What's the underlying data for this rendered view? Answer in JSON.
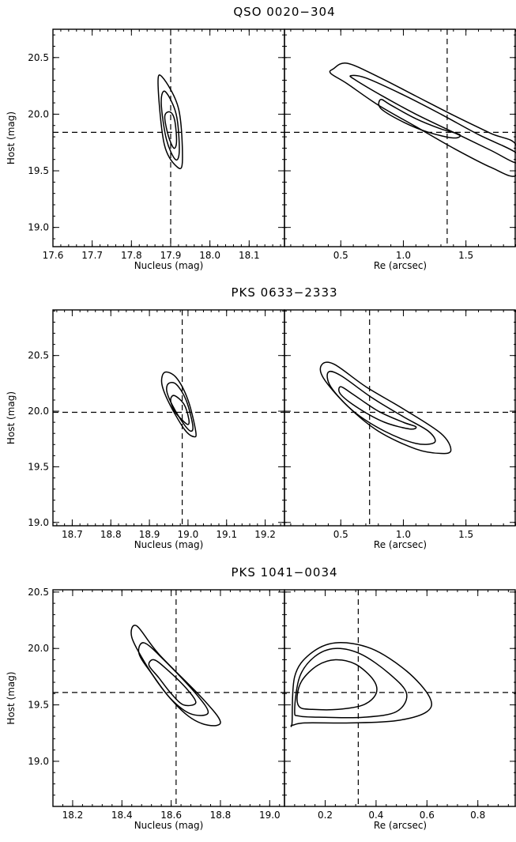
{
  "chart_data": [
    {
      "type": "contour",
      "title": "QSO 0020−304",
      "ylabel": "Host (mag)",
      "ylim": [
        18.83,
        20.75
      ],
      "yticks": [
        "19.0",
        "19.5",
        "20.0",
        "20.5"
      ],
      "yticks_values": [
        19.0,
        19.5,
        20.0,
        20.5
      ],
      "panels": [
        {
          "xlabel": "Nucleus (mag)",
          "xlim": [
            17.6,
            18.19
          ],
          "xticks": [
            "17.6",
            "17.7",
            "17.8",
            "17.9",
            "18.0",
            "18.1"
          ],
          "xticks_values": [
            17.6,
            17.7,
            17.8,
            17.9,
            18.0,
            18.1
          ],
          "best_fit": {
            "x": 17.9,
            "y": 19.84
          },
          "contours": [
            {
              "level": 1,
              "points": [
                [
                  17.898,
                  20.02
                ],
                [
                  17.885,
                  19.98
                ],
                [
                  17.894,
                  19.81
                ],
                [
                  17.908,
                  19.7
                ],
                [
                  17.915,
                  19.76
                ],
                [
                  17.91,
                  19.95
                ]
              ]
            },
            {
              "level": 2,
              "points": [
                [
                  17.886,
                  20.2
                ],
                [
                  17.876,
                  20.1
                ],
                [
                  17.889,
                  19.78
                ],
                [
                  17.912,
                  19.6
                ],
                [
                  17.922,
                  19.68
                ],
                [
                  17.914,
                  20.0
                ]
              ]
            },
            {
              "level": 3,
              "points": [
                [
                  17.878,
                  20.33
                ],
                [
                  17.868,
                  20.25
                ],
                [
                  17.884,
                  19.73
                ],
                [
                  17.918,
                  19.53
                ],
                [
                  17.93,
                  19.6
                ],
                [
                  17.92,
                  20.05
                ]
              ]
            }
          ]
        },
        {
          "xlabel": "Re (arcsec)",
          "xlim": [
            0.05,
            1.9
          ],
          "xticks": [
            "0.5",
            "1.0",
            "1.5"
          ],
          "xticks_values": [
            0.5,
            1.0,
            1.5
          ],
          "best_fit": {
            "x": 1.35,
            "y": 19.84
          },
          "contours": [
            {
              "level": 1,
              "points": [
                [
                  0.82,
                  20.13
                ],
                [
                  0.9,
                  20.08
                ],
                [
                  1.1,
                  19.96
                ],
                [
                  1.3,
                  19.87
                ],
                [
                  1.45,
                  19.82
                ],
                [
                  1.4,
                  19.79
                ],
                [
                  1.2,
                  19.84
                ],
                [
                  1.0,
                  19.93
                ],
                [
                  0.82,
                  20.05
                ]
              ]
            },
            {
              "level": 2,
              "points": [
                [
                  0.58,
                  20.34
                ],
                [
                  0.7,
                  20.32
                ],
                [
                  1.0,
                  20.17
                ],
                [
                  1.3,
                  20.0
                ],
                [
                  1.6,
                  19.82
                ],
                [
                  1.9,
                  19.66
                ],
                [
                  1.9,
                  19.57
                ],
                [
                  1.7,
                  19.68
                ],
                [
                  1.4,
                  19.84
                ],
                [
                  1.1,
                  20.0
                ],
                [
                  0.85,
                  20.15
                ],
                [
                  0.62,
                  20.3
                ]
              ]
            },
            {
              "level": 3,
              "points": [
                [
                  0.44,
                  20.4
                ],
                [
                  0.55,
                  20.45
                ],
                [
                  0.8,
                  20.33
                ],
                [
                  1.1,
                  20.16
                ],
                [
                  1.4,
                  19.99
                ],
                [
                  1.7,
                  19.83
                ],
                [
                  1.9,
                  19.73
                ],
                [
                  1.9,
                  19.46
                ],
                [
                  1.7,
                  19.53
                ],
                [
                  1.4,
                  19.7
                ],
                [
                  1.1,
                  19.89
                ],
                [
                  0.8,
                  20.08
                ],
                [
                  0.55,
                  20.27
                ],
                [
                  0.42,
                  20.36
                ]
              ]
            }
          ]
        }
      ]
    },
    {
      "type": "contour",
      "title": "PKS 0633−2333",
      "ylabel": "Host (mag)",
      "ylim": [
        18.97,
        20.91
      ],
      "yticks": [
        "19.0",
        "19.5",
        "20.0",
        "20.5"
      ],
      "yticks_values": [
        19.0,
        19.5,
        20.0,
        20.5
      ],
      "panels": [
        {
          "xlabel": "Nucleus (mag)",
          "xlim": [
            18.65,
            19.25
          ],
          "xticks": [
            "18.7",
            "18.8",
            "18.9",
            "19.0",
            "19.1",
            "19.2"
          ],
          "xticks_values": [
            18.7,
            18.8,
            18.9,
            19.0,
            19.1,
            19.2
          ],
          "best_fit": {
            "x": 18.985,
            "y": 19.99
          },
          "contours": [
            {
              "level": 1,
              "points": [
                [
                  18.965,
                  20.14
                ],
                [
                  18.955,
                  20.1
                ],
                [
                  18.965,
                  20.0
                ],
                [
                  18.985,
                  19.92
                ],
                [
                  19.0,
                  19.88
                ],
                [
                  19.002,
                  19.93
                ],
                [
                  18.99,
                  20.06
                ]
              ]
            },
            {
              "level": 2,
              "points": [
                [
                  18.95,
                  20.25
                ],
                [
                  18.945,
                  20.18
                ],
                [
                  18.96,
                  20.05
                ],
                [
                  18.99,
                  19.88
                ],
                [
                  19.008,
                  19.82
                ],
                [
                  19.012,
                  19.88
                ],
                [
                  18.995,
                  20.1
                ],
                [
                  18.97,
                  20.24
                ]
              ]
            },
            {
              "level": 3,
              "points": [
                [
                  18.94,
                  20.35
                ],
                [
                  18.932,
                  20.25
                ],
                [
                  18.95,
                  20.08
                ],
                [
                  18.99,
                  19.84
                ],
                [
                  19.015,
                  19.77
                ],
                [
                  19.02,
                  19.82
                ],
                [
                  19.0,
                  20.1
                ],
                [
                  18.97,
                  20.3
                ]
              ]
            }
          ]
        },
        {
          "xlabel": "Re (arcsec)",
          "xlim": [
            0.05,
            1.9
          ],
          "xticks": [
            "0.5",
            "1.0",
            "1.5"
          ],
          "xticks_values": [
            0.5,
            1.0,
            1.5
          ],
          "best_fit": {
            "x": 0.73,
            "y": 19.99
          },
          "contours": [
            {
              "level": 1,
              "points": [
                [
                  0.5,
                  20.22
                ],
                [
                  0.6,
                  20.15
                ],
                [
                  0.8,
                  20.0
                ],
                [
                  1.0,
                  19.9
                ],
                [
                  1.1,
                  19.86
                ],
                [
                  1.05,
                  19.84
                ],
                [
                  0.85,
                  19.9
                ],
                [
                  0.65,
                  20.02
                ],
                [
                  0.5,
                  20.15
                ]
              ]
            },
            {
              "level": 2,
              "points": [
                [
                  0.4,
                  20.35
                ],
                [
                  0.5,
                  20.32
                ],
                [
                  0.75,
                  20.12
                ],
                [
                  1.0,
                  19.95
                ],
                [
                  1.2,
                  19.82
                ],
                [
                  1.25,
                  19.72
                ],
                [
                  1.1,
                  19.71
                ],
                [
                  0.85,
                  19.82
                ],
                [
                  0.6,
                  20.0
                ],
                [
                  0.42,
                  20.22
                ]
              ]
            },
            {
              "level": 3,
              "points": [
                [
                  0.35,
                  20.42
                ],
                [
                  0.45,
                  20.42
                ],
                [
                  0.7,
                  20.22
                ],
                [
                  1.0,
                  20.02
                ],
                [
                  1.3,
                  19.8
                ],
                [
                  1.38,
                  19.65
                ],
                [
                  1.3,
                  19.62
                ],
                [
                  1.1,
                  19.66
                ],
                [
                  0.8,
                  19.82
                ],
                [
                  0.55,
                  20.05
                ],
                [
                  0.36,
                  20.3
                ]
              ]
            }
          ]
        }
      ]
    },
    {
      "type": "contour",
      "title": "PKS 1041−0034",
      "ylabel": "Host (mag)",
      "ylim": [
        18.6,
        20.52
      ],
      "yticks": [
        "19.0",
        "19.5",
        "20.0",
        "20.5"
      ],
      "yticks_values": [
        19.0,
        19.5,
        20.0,
        20.5
      ],
      "panels": [
        {
          "xlabel": "Nucleus (mag)",
          "xlim": [
            18.12,
            19.06
          ],
          "xticks": [
            "18.2",
            "18.4",
            "18.6",
            "18.8",
            "19.0"
          ],
          "xticks_values": [
            18.2,
            18.4,
            18.6,
            18.8,
            19.0
          ],
          "best_fit": {
            "x": 18.62,
            "y": 19.61
          },
          "contours": [
            {
              "level": 1,
              "points": [
                [
                  18.53,
                  19.9
                ],
                [
                  18.51,
                  19.85
                ],
                [
                  18.55,
                  19.74
                ],
                [
                  18.6,
                  19.6
                ],
                [
                  18.65,
                  19.5
                ],
                [
                  18.7,
                  19.52
                ],
                [
                  18.66,
                  19.65
                ],
                [
                  18.58,
                  19.82
                ]
              ]
            },
            {
              "level": 2,
              "points": [
                [
                  18.49,
                  20.05
                ],
                [
                  18.47,
                  19.95
                ],
                [
                  18.53,
                  19.75
                ],
                [
                  18.6,
                  19.55
                ],
                [
                  18.68,
                  19.42
                ],
                [
                  18.75,
                  19.43
                ],
                [
                  18.7,
                  19.6
                ],
                [
                  18.57,
                  19.9
                ]
              ]
            },
            {
              "level": 3,
              "points": [
                [
                  18.46,
                  20.2
                ],
                [
                  18.44,
                  20.1
                ],
                [
                  18.5,
                  19.85
                ],
                [
                  18.58,
                  19.6
                ],
                [
                  18.67,
                  19.4
                ],
                [
                  18.75,
                  19.32
                ],
                [
                  18.8,
                  19.35
                ],
                [
                  18.73,
                  19.55
                ],
                [
                  18.55,
                  19.95
                ]
              ]
            }
          ]
        },
        {
          "xlabel": "Re (arcsec)",
          "xlim": [
            0.04,
            0.95
          ],
          "xticks": [
            "0.2",
            "0.4",
            "0.6",
            "0.8"
          ],
          "xticks_values": [
            0.2,
            0.4,
            0.6,
            0.8
          ],
          "best_fit": {
            "x": 0.33,
            "y": 19.61
          },
          "contours": [
            {
              "level": 1,
              "points": [
                [
                  0.09,
                  19.58
                ],
                [
                  0.11,
                  19.72
                ],
                [
                  0.17,
                  19.85
                ],
                [
                  0.24,
                  19.9
                ],
                [
                  0.32,
                  19.86
                ],
                [
                  0.39,
                  19.72
                ],
                [
                  0.4,
                  19.6
                ],
                [
                  0.35,
                  19.5
                ],
                [
                  0.25,
                  19.46
                ],
                [
                  0.15,
                  19.46
                ],
                [
                  0.1,
                  19.48
                ]
              ]
            },
            {
              "level": 2,
              "points": [
                [
                  0.08,
                  19.45
                ],
                [
                  0.1,
                  19.75
                ],
                [
                  0.16,
                  19.93
                ],
                [
                  0.24,
                  20.0
                ],
                [
                  0.34,
                  19.95
                ],
                [
                  0.45,
                  19.78
                ],
                [
                  0.52,
                  19.6
                ],
                [
                  0.48,
                  19.44
                ],
                [
                  0.35,
                  19.39
                ],
                [
                  0.2,
                  19.39
                ],
                [
                  0.1,
                  19.4
                ]
              ]
            },
            {
              "level": 3,
              "points": [
                [
                  0.07,
                  19.35
                ],
                [
                  0.08,
                  19.75
                ],
                [
                  0.14,
                  19.95
                ],
                [
                  0.24,
                  20.05
                ],
                [
                  0.38,
                  20.0
                ],
                [
                  0.52,
                  19.8
                ],
                [
                  0.61,
                  19.57
                ],
                [
                  0.6,
                  19.44
                ],
                [
                  0.48,
                  19.36
                ],
                [
                  0.3,
                  19.34
                ],
                [
                  0.12,
                  19.34
                ],
                [
                  0.07,
                  19.32
                ]
              ]
            }
          ]
        }
      ]
    }
  ]
}
